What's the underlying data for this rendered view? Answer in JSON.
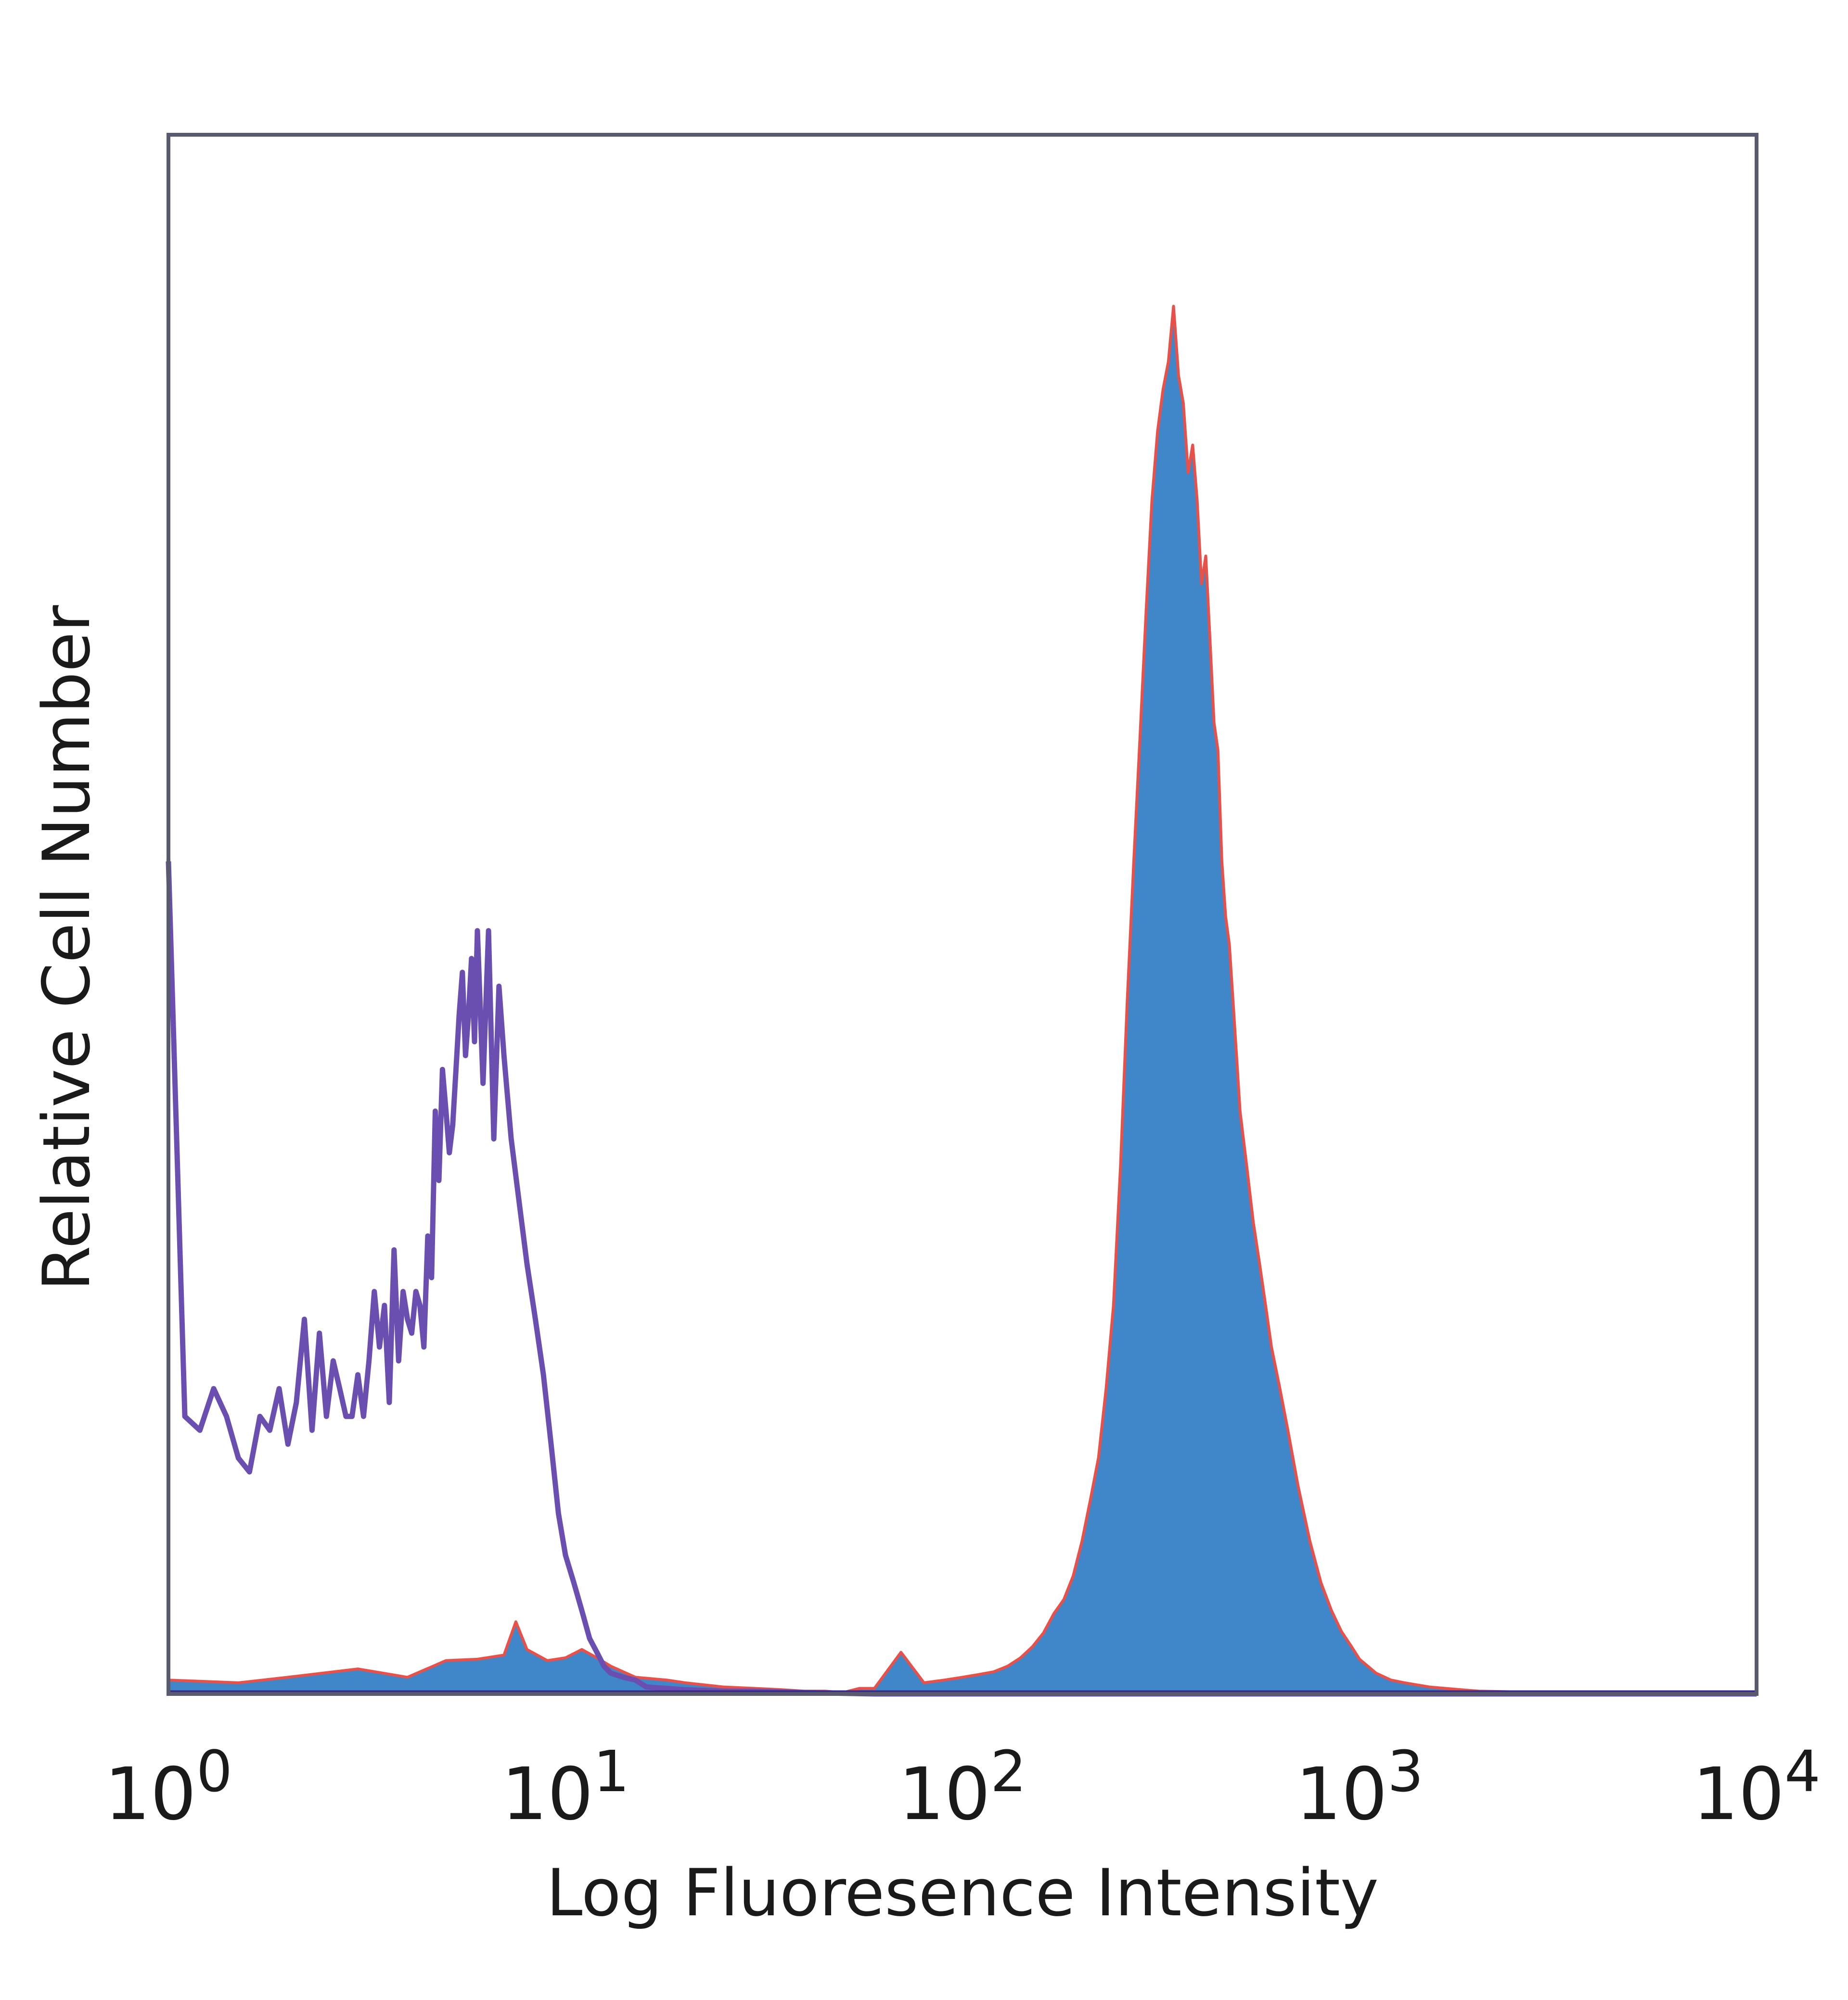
{
  "chart_data": {
    "type": "area",
    "xlabel": "Log Fluoresence Intensity",
    "ylabel": "Relative Cell Number",
    "x_scale": "log",
    "xlim": [
      1,
      10000
    ],
    "ylim": [
      0,
      100
    ],
    "grid": false,
    "x_ticks": [
      {
        "value": 1,
        "base": "10",
        "exp": "0"
      },
      {
        "value": 10,
        "base": "10",
        "exp": "1"
      },
      {
        "value": 100,
        "base": "10",
        "exp": "2"
      },
      {
        "value": 1000,
        "base": "10",
        "exp": "3"
      },
      {
        "value": 10000,
        "base": "10",
        "exp": "4"
      }
    ],
    "colors": {
      "frame": "#5a5a6e",
      "isotype_line": "#6a4fb0",
      "stained_fill": "#3f87c8",
      "stained_line": "#e8504a",
      "baseline": "#3a2a8a"
    },
    "series": [
      {
        "style": "outline",
        "x": [
          1.0,
          1.1,
          1.2,
          1.3,
          1.4,
          1.5,
          1.6,
          1.7,
          1.8,
          1.9,
          2.0,
          2.1,
          2.2,
          2.3,
          2.4,
          2.5,
          2.6,
          2.7,
          2.8,
          2.9,
          3.0,
          3.1,
          3.2,
          3.3,
          3.4,
          3.5,
          3.6,
          3.7,
          3.8,
          3.9,
          4.0,
          4.1,
          4.2,
          4.3,
          4.4,
          4.5,
          4.6,
          4.7,
          4.8,
          4.9,
          5.0,
          5.1,
          5.2,
          5.3,
          5.4,
          5.5,
          5.6,
          5.7,
          5.8,
          5.9,
          6.0,
          6.2,
          6.4,
          6.6,
          6.8,
          7.0,
          7.3,
          7.6,
          8.0,
          8.4,
          8.8,
          9.2,
          9.6,
          10.0,
          10.5,
          11.0,
          11.5,
          12.0,
          12.5,
          13.0,
          14.0,
          15.0,
          16.0,
          18.0,
          20.0,
          25.0,
          30.0,
          40.0,
          60.0,
          100.0,
          200.0,
          500.0,
          1000.0,
          10000.0
        ],
        "values": [
          60,
          20,
          19,
          22,
          20,
          17,
          16,
          20,
          19,
          22,
          18,
          21,
          27,
          19,
          26,
          20,
          24,
          22,
          20,
          20,
          23,
          20,
          24,
          29,
          25,
          28,
          21,
          32,
          24,
          29,
          27,
          26,
          29,
          28,
          25,
          33,
          30,
          42,
          37,
          45,
          42,
          39,
          41,
          45,
          49,
          52,
          46,
          49,
          53,
          47,
          55,
          44,
          55,
          40,
          51,
          46,
          40,
          36,
          31,
          27,
          23,
          18,
          13,
          10,
          8,
          6,
          4,
          3,
          2,
          1.5,
          1.2,
          1,
          0.5,
          0.4,
          0.3,
          0.2,
          0.2,
          0.1,
          0,
          0,
          0,
          0,
          0,
          0
        ]
      },
      {
        "style": "filled",
        "x": [
          1.0,
          1.5,
          2.0,
          3.0,
          4.0,
          5.0,
          6.0,
          7.0,
          7.5,
          8.0,
          9.0,
          10.0,
          11.0,
          12.0,
          13.0,
          15.0,
          18.0,
          20.0,
          25.0,
          30.0,
          35.0,
          40.0,
          45.0,
          50.0,
          55.0,
          60.0,
          70.0,
          80.0,
          90.0,
          100.0,
          110.0,
          120.0,
          130.0,
          140.0,
          150.0,
          160.0,
          170.0,
          180.0,
          190.0,
          200.0,
          210.0,
          220.0,
          230.0,
          240.0,
          250.0,
          260.0,
          270.0,
          280.0,
          290.0,
          300.0,
          310.0,
          320.0,
          330.0,
          340.0,
          350.0,
          360.0,
          370.0,
          380.0,
          390.0,
          400.0,
          410.0,
          420.0,
          430.0,
          440.0,
          450.0,
          460.0,
          470.0,
          480.0,
          490.0,
          500.0,
          520.0,
          540.0,
          560.0,
          580.0,
          600.0,
          630.0,
          660.0,
          700.0,
          750.0,
          800.0,
          850.0,
          900.0,
          950.0,
          1000.0,
          1100.0,
          1200.0,
          1300.0,
          1500.0,
          1800.0,
          2000.0,
          3000.0,
          10000.0
        ],
        "values": [
          1,
          0.8,
          1.2,
          1.8,
          1.2,
          2.4,
          2.5,
          2.8,
          5.2,
          3.2,
          2.4,
          2.6,
          3.2,
          2.6,
          2.0,
          1.2,
          1.0,
          0.8,
          0.5,
          0.4,
          0.3,
          0.2,
          0.2,
          0.1,
          0.4,
          0.4,
          3.0,
          0.8,
          1.0,
          1.2,
          1.4,
          1.6,
          2.0,
          2.6,
          3.4,
          4.4,
          5.8,
          6.8,
          8.5,
          11,
          14,
          17,
          22,
          28,
          38,
          50,
          60,
          69,
          78,
          86,
          91,
          94,
          96,
          100,
          95,
          93,
          88,
          90,
          86,
          80,
          82,
          76,
          70,
          68,
          60,
          56,
          54,
          50,
          46,
          42,
          38,
          34,
          31,
          28,
          25,
          22,
          19,
          15,
          11,
          8,
          6,
          4.5,
          3.5,
          2.5,
          1.5,
          1.0,
          0.8,
          0.5,
          0.3,
          0.2,
          0.1,
          0
        ]
      }
    ]
  }
}
